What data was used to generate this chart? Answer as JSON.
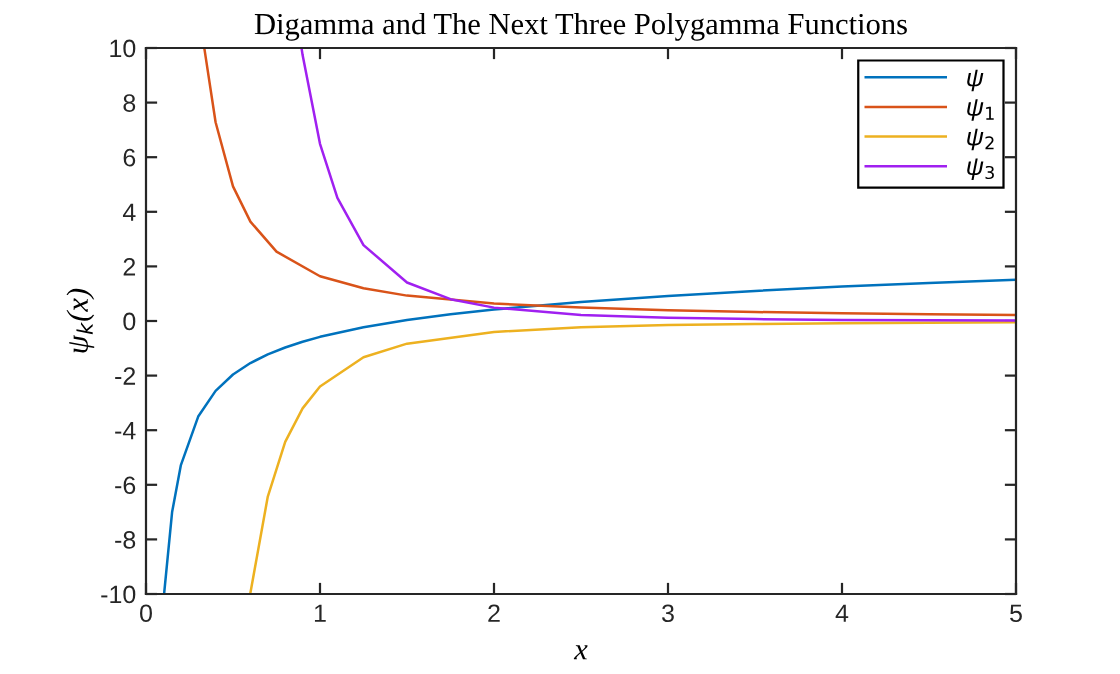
{
  "chart_data": {
    "type": "line",
    "title": "Digamma and The Next Three Polygamma Functions",
    "xlabel": "x",
    "ylabel": "ψ$_{k}$(x)",
    "xlim": [
      0,
      5
    ],
    "xticks": [
      0,
      1,
      2,
      3,
      4,
      5
    ],
    "ylim": [
      -10,
      10
    ],
    "yticks": [
      -10,
      -8,
      -6,
      -4,
      -2,
      0,
      2,
      4,
      6,
      8,
      10
    ],
    "grid": false,
    "legend": "top right",
    "marker": "none",
    "line_style": "solid",
    "series": [
      {
        "name": "ψ",
        "color": "#0072bd",
        "x": [
          0.105,
          0.15,
          0.2,
          0.3,
          0.4,
          0.5,
          0.6,
          0.7,
          0.8,
          0.9,
          1,
          1.25,
          1.5,
          1.75,
          2,
          2.5,
          3,
          3.5,
          4,
          4.5,
          5
        ],
        "values": [
          -9.93,
          -7.0,
          -5.29,
          -3.5,
          -2.56,
          -1.96,
          -1.54,
          -1.22,
          -0.97,
          -0.76,
          -0.58,
          -0.23,
          0.04,
          0.25,
          0.42,
          0.7,
          0.92,
          1.1,
          1.26,
          1.39,
          1.51
        ]
      },
      {
        "name": "ψ$_{1}$",
        "color": "#d95319",
        "x": [
          0.336,
          0.4,
          0.5,
          0.6,
          0.75,
          1,
          1.25,
          1.5,
          2,
          2.5,
          3,
          3.5,
          4,
          4.5,
          5
        ],
        "values": [
          9.96,
          7.28,
          4.93,
          3.64,
          2.54,
          1.64,
          1.2,
          0.93,
          0.64,
          0.49,
          0.39,
          0.33,
          0.28,
          0.25,
          0.22
        ]
      },
      {
        "name": "ψ$_{2}$",
        "color": "#edb120",
        "x": [
          0.6,
          0.7,
          0.8,
          0.9,
          1,
          1.25,
          1.5,
          2,
          2.5,
          3,
          3.5,
          4,
          4.5,
          5
        ],
        "values": [
          -9.96,
          -6.43,
          -4.43,
          -3.2,
          -2.4,
          -1.33,
          -0.83,
          -0.4,
          -0.23,
          -0.15,
          -0.11,
          -0.08,
          -0.06,
          -0.05
        ]
      },
      {
        "name": "ψ$_{3}$",
        "color": "#a020f0",
        "x": [
          0.895,
          0.9,
          1,
          1.1,
          1.25,
          1.5,
          1.75,
          2,
          2.5,
          3,
          3.5,
          4,
          4.5,
          5
        ],
        "values": [
          9.95,
          9.74,
          6.49,
          4.51,
          2.78,
          1.41,
          0.8,
          0.49,
          0.22,
          0.12,
          0.07,
          0.04,
          0.03,
          0.02
        ]
      }
    ]
  }
}
